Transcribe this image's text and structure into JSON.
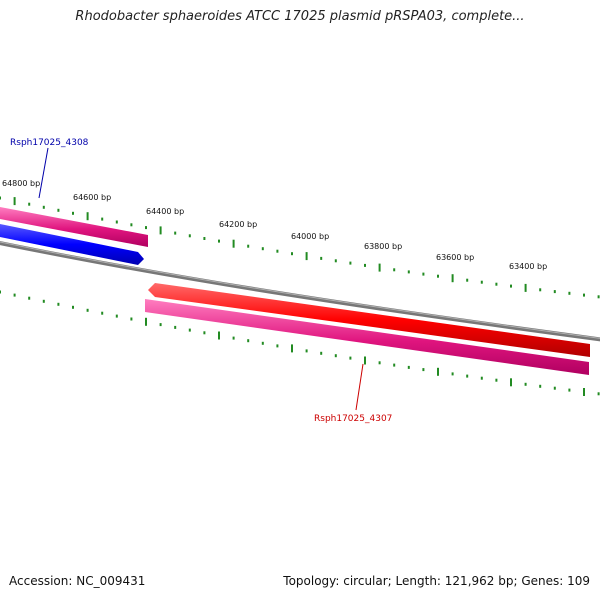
{
  "title": "Rhodobacter sphaeroides ATCC 17025 plasmid pRSPA03, complete...",
  "footer": {
    "accession": "Accession: NC_009431",
    "summary": "Topology: circular; Length: 121,962 bp; Genes: 109"
  },
  "ticks": [
    {
      "label": "64800 bp"
    },
    {
      "label": "64600 bp"
    },
    {
      "label": "64400 bp"
    },
    {
      "label": "64200 bp"
    },
    {
      "label": "64000 bp"
    },
    {
      "label": "63800 bp"
    },
    {
      "label": "63600 bp"
    },
    {
      "label": "63400 bp"
    }
  ],
  "genes": [
    {
      "label": "Rsph17025_4308",
      "color": "#0000aa"
    },
    {
      "label": "Rsph17025_4307",
      "color": "#cc0000"
    }
  ],
  "colors": {
    "backbone": "#808080",
    "tick": "#228b22",
    "cds_forward": "#0000ff",
    "cds_reverse": "#ff0000",
    "gene": "#e0157f"
  }
}
